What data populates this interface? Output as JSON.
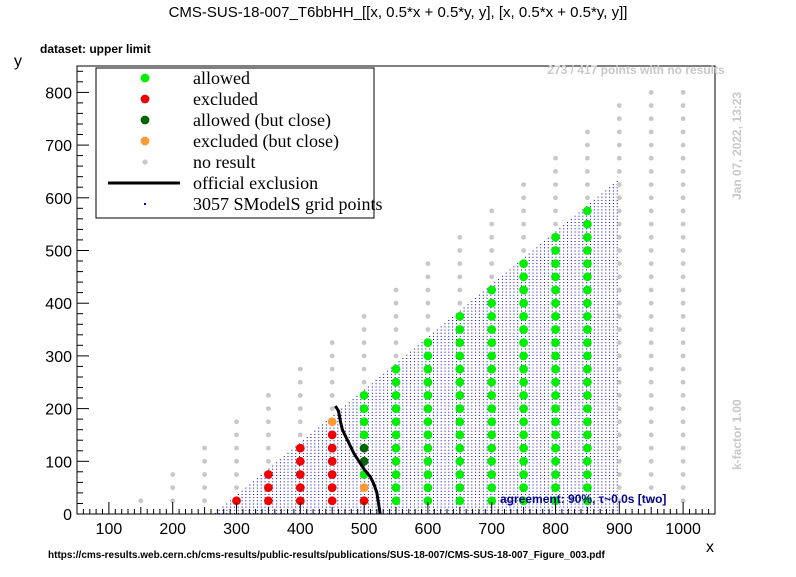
{
  "chart_data": {
    "type": "scatter",
    "title": "CMS-SUS-18-007_T6bbHH_[[x, 0.5*x + 0.5*y, y], [x, 0.5*x + 0.5*y, y]]",
    "subtitle": "dataset: upper limit",
    "xlabel": "x",
    "ylabel": "y",
    "xlim": [
      50,
      1050
    ],
    "ylim": [
      0,
      850
    ],
    "x_ticks": [
      100,
      200,
      300,
      400,
      500,
      600,
      700,
      800,
      900,
      1000
    ],
    "y_ticks": [
      0,
      100,
      200,
      300,
      400,
      500,
      600,
      700,
      800
    ],
    "grid": false,
    "legend_position": "top-left",
    "legend": [
      {
        "key": "allowed",
        "label": "allowed",
        "color": "#00ee00"
      },
      {
        "key": "excluded",
        "label": "excluded",
        "color": "#ee0000"
      },
      {
        "key": "allowed_close",
        "label": "allowed (but close)",
        "color": "#006600"
      },
      {
        "key": "excluded_close",
        "label": "excluded (but close)",
        "color": "#ff9933"
      },
      {
        "key": "no_result",
        "label": "no result",
        "color": "#c8c8c8"
      },
      {
        "key": "official",
        "label": "official exclusion",
        "color": "#000000"
      },
      {
        "key": "grid_points",
        "label": "3057 SModelS grid points",
        "color": "#0000cc"
      }
    ],
    "annotations": {
      "no_results": "273 / 417 points with no results",
      "timestamp": "Jan 07, 2022, 13:23",
      "kfactor": "k-factor 1.00",
      "agreement": "agreement: 90%, τ~0.0s [two]",
      "source_url": "https://cms-results.web.cern.ch/cms-results/public-results/publications/SUS-18-007/CMS-SUS-18-007_Figure_003.pdf"
    },
    "grid_region": {
      "x_start": 260,
      "x_end": 900,
      "y_max_at_x_end": 640
    },
    "series": {
      "excluded": [
        [
          300,
          25
        ],
        [
          350,
          25
        ],
        [
          350,
          50
        ],
        [
          350,
          75
        ],
        [
          400,
          25
        ],
        [
          400,
          50
        ],
        [
          400,
          75
        ],
        [
          400,
          100
        ],
        [
          400,
          125
        ],
        [
          450,
          25
        ],
        [
          450,
          50
        ],
        [
          450,
          75
        ],
        [
          450,
          100
        ],
        [
          450,
          125
        ],
        [
          450,
          150
        ],
        [
          500,
          25
        ]
      ],
      "excluded_close": [
        [
          450,
          175
        ],
        [
          500,
          50
        ]
      ],
      "allowed_close": [
        [
          500,
          100
        ],
        [
          500,
          125
        ]
      ],
      "allowed": [
        [
          500,
          75
        ],
        [
          500,
          150
        ],
        [
          500,
          175
        ],
        [
          500,
          200
        ],
        [
          500,
          225
        ],
        [
          550,
          25
        ],
        [
          550,
          50
        ],
        [
          550,
          75
        ],
        [
          550,
          100
        ],
        [
          550,
          125
        ],
        [
          550,
          150
        ],
        [
          550,
          175
        ],
        [
          550,
          200
        ],
        [
          550,
          225
        ],
        [
          550,
          250
        ],
        [
          550,
          275
        ],
        [
          600,
          25
        ],
        [
          600,
          50
        ],
        [
          600,
          75
        ],
        [
          600,
          100
        ],
        [
          600,
          125
        ],
        [
          600,
          150
        ],
        [
          600,
          175
        ],
        [
          600,
          200
        ],
        [
          600,
          225
        ],
        [
          600,
          250
        ],
        [
          600,
          275
        ],
        [
          600,
          300
        ],
        [
          600,
          325
        ],
        [
          650,
          25
        ],
        [
          650,
          50
        ],
        [
          650,
          75
        ],
        [
          650,
          100
        ],
        [
          650,
          125
        ],
        [
          650,
          150
        ],
        [
          650,
          175
        ],
        [
          650,
          200
        ],
        [
          650,
          225
        ],
        [
          650,
          250
        ],
        [
          650,
          275
        ],
        [
          650,
          300
        ],
        [
          650,
          325
        ],
        [
          650,
          350
        ],
        [
          650,
          375
        ],
        [
          700,
          25
        ],
        [
          700,
          50
        ],
        [
          700,
          75
        ],
        [
          700,
          100
        ],
        [
          700,
          125
        ],
        [
          700,
          150
        ],
        [
          700,
          175
        ],
        [
          700,
          200
        ],
        [
          700,
          225
        ],
        [
          700,
          250
        ],
        [
          700,
          275
        ],
        [
          700,
          300
        ],
        [
          700,
          325
        ],
        [
          700,
          350
        ],
        [
          700,
          375
        ],
        [
          700,
          400
        ],
        [
          700,
          425
        ],
        [
          750,
          25
        ],
        [
          750,
          50
        ],
        [
          750,
          75
        ],
        [
          750,
          100
        ],
        [
          750,
          125
        ],
        [
          750,
          150
        ],
        [
          750,
          175
        ],
        [
          750,
          200
        ],
        [
          750,
          225
        ],
        [
          750,
          250
        ],
        [
          750,
          275
        ],
        [
          750,
          300
        ],
        [
          750,
          325
        ],
        [
          750,
          350
        ],
        [
          750,
          375
        ],
        [
          750,
          400
        ],
        [
          750,
          425
        ],
        [
          750,
          450
        ],
        [
          750,
          475
        ],
        [
          800,
          25
        ],
        [
          800,
          50
        ],
        [
          800,
          75
        ],
        [
          800,
          100
        ],
        [
          800,
          125
        ],
        [
          800,
          150
        ],
        [
          800,
          175
        ],
        [
          800,
          200
        ],
        [
          800,
          225
        ],
        [
          800,
          250
        ],
        [
          800,
          275
        ],
        [
          800,
          300
        ],
        [
          800,
          325
        ],
        [
          800,
          350
        ],
        [
          800,
          375
        ],
        [
          800,
          400
        ],
        [
          800,
          425
        ],
        [
          800,
          450
        ],
        [
          800,
          475
        ],
        [
          800,
          500
        ],
        [
          800,
          525
        ],
        [
          850,
          25
        ],
        [
          850,
          50
        ],
        [
          850,
          75
        ],
        [
          850,
          100
        ],
        [
          850,
          125
        ],
        [
          850,
          150
        ],
        [
          850,
          175
        ],
        [
          850,
          200
        ],
        [
          850,
          225
        ],
        [
          850,
          250
        ],
        [
          850,
          275
        ],
        [
          850,
          300
        ],
        [
          850,
          325
        ],
        [
          850,
          350
        ],
        [
          850,
          375
        ],
        [
          850,
          400
        ],
        [
          850,
          425
        ],
        [
          850,
          450
        ],
        [
          850,
          475
        ],
        [
          850,
          500
        ],
        [
          850,
          525
        ],
        [
          850,
          550
        ],
        [
          850,
          575
        ]
      ],
      "official_exclusion": [
        [
          455,
          205
        ],
        [
          460,
          195
        ],
        [
          463,
          175
        ],
        [
          466,
          160
        ],
        [
          472,
          145
        ],
        [
          478,
          130
        ],
        [
          484,
          115
        ],
        [
          492,
          100
        ],
        [
          500,
          85
        ],
        [
          510,
          70
        ],
        [
          516,
          55
        ],
        [
          520,
          40
        ],
        [
          522,
          25
        ],
        [
          524,
          10
        ],
        [
          525,
          0
        ]
      ]
    }
  }
}
